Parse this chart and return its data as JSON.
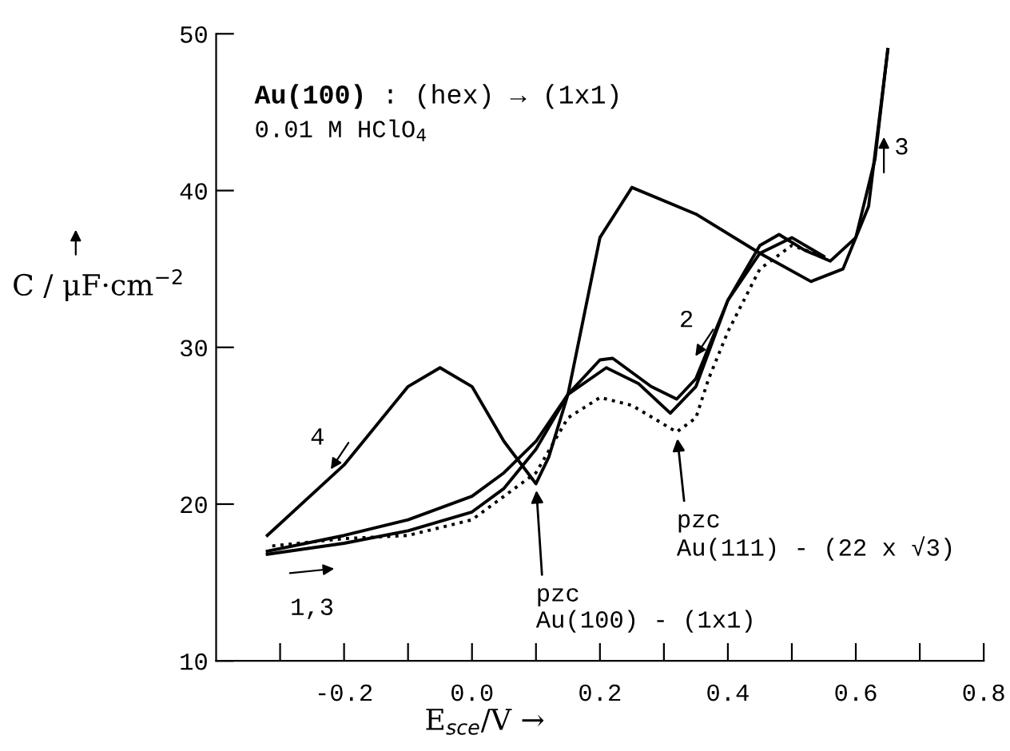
{
  "chart_data": {
    "type": "line",
    "xlabel": "E$_{sce}$/V →",
    "ylabel": "C / μF·cm$^{−2}$",
    "xlim": [
      -0.4,
      0.8
    ],
    "ylim": [
      10,
      50
    ],
    "xticks": [
      {
        "value": -0.3,
        "label": null
      },
      -0.2,
      {
        "value": -0.1,
        "label": null
      },
      {
        "value": 0,
        "label": "0.0"
      },
      {
        "value": 0.1,
        "label": null
      },
      0.2,
      {
        "value": 0.3,
        "label": null
      },
      0.4,
      {
        "value": 0.5,
        "label": null
      },
      0.6,
      {
        "value": 0.7,
        "label": null
      },
      0.8
    ],
    "yticks": [
      10,
      20,
      30,
      40,
      50
    ],
    "grid": false,
    "legend": false,
    "series": [
      {
        "color": "#000000",
        "line_style": "solid",
        "x": [
          -0.32,
          -0.2,
          -0.1,
          0.0,
          0.05,
          0.1,
          0.15,
          0.21,
          0.26,
          0.31,
          0.35,
          0.4,
          0.45,
          0.5,
          0.55
        ],
        "values": [
          16.8,
          17.5,
          18.3,
          19.5,
          21.0,
          23.5,
          27.0,
          28.7,
          27.7,
          25.8,
          27.5,
          33.0,
          36.0,
          37.0,
          35.8
        ]
      },
      {
        "color": "#000000",
        "line_style": "dotted",
        "x": [
          0.55,
          0.5,
          0.45,
          0.4,
          0.37,
          0.35,
          0.32,
          0.25,
          0.2,
          0.15,
          0.1,
          0.0,
          -0.1,
          -0.2,
          -0.32
        ],
        "values": [
          35.8,
          36.5,
          35.0,
          31.0,
          28.0,
          25.5,
          24.6,
          26.3,
          26.8,
          25.5,
          22.0,
          19.0,
          18.0,
          17.8,
          17.3
        ]
      },
      {
        "color": "#000000",
        "line_style": "solid",
        "x": [
          -0.32,
          -0.2,
          -0.1,
          0.0,
          0.05,
          0.1,
          0.15,
          0.2,
          0.22,
          0.28,
          0.32,
          0.35,
          0.4,
          0.45,
          0.48,
          0.52,
          0.56,
          0.6,
          0.63,
          0.65
        ],
        "values": [
          17.0,
          18.0,
          19.0,
          20.5,
          22.0,
          24.0,
          27.0,
          29.2,
          29.3,
          27.5,
          26.7,
          28.0,
          33.0,
          36.5,
          37.2,
          36.2,
          35.5,
          37.0,
          42.0,
          49.0
        ]
      },
      {
        "color": "#000000",
        "line_style": "solid",
        "x": [
          0.65,
          0.62,
          0.58,
          0.53,
          0.45,
          0.35,
          0.25,
          0.2,
          0.15,
          0.12,
          0.1,
          0.05,
          0.0,
          -0.05,
          -0.1,
          -0.2,
          -0.32
        ],
        "values": [
          49.0,
          39.0,
          35.0,
          34.2,
          36.0,
          38.5,
          40.2,
          37.0,
          27.0,
          23.0,
          21.3,
          24.0,
          27.5,
          28.7,
          27.5,
          22.5,
          18.0
        ]
      }
    ],
    "annotations": [
      "Au(100)",
      " : (hex) → (1x1)",
      "0.01 M HClO$_{4}$",
      {
        "text": "pzc\nAu(100) - (1x1)",
        "x": 0.1,
        "y": 21.3
      },
      {
        "text": "pzc\nAu(111) - (22 x √3)",
        "x": 0.32,
        "y": 24.6
      },
      {
        "text": "4",
        "x": -0.2,
        "y": 22.5
      },
      {
        "text": "2",
        "x": 0.37,
        "y": 30.0
      },
      {
        "text": "3",
        "x": 0.63,
        "y": 42.0
      },
      {
        "text": "1,3",
        "x": -0.25,
        "y": 17.3
      }
    ]
  }
}
